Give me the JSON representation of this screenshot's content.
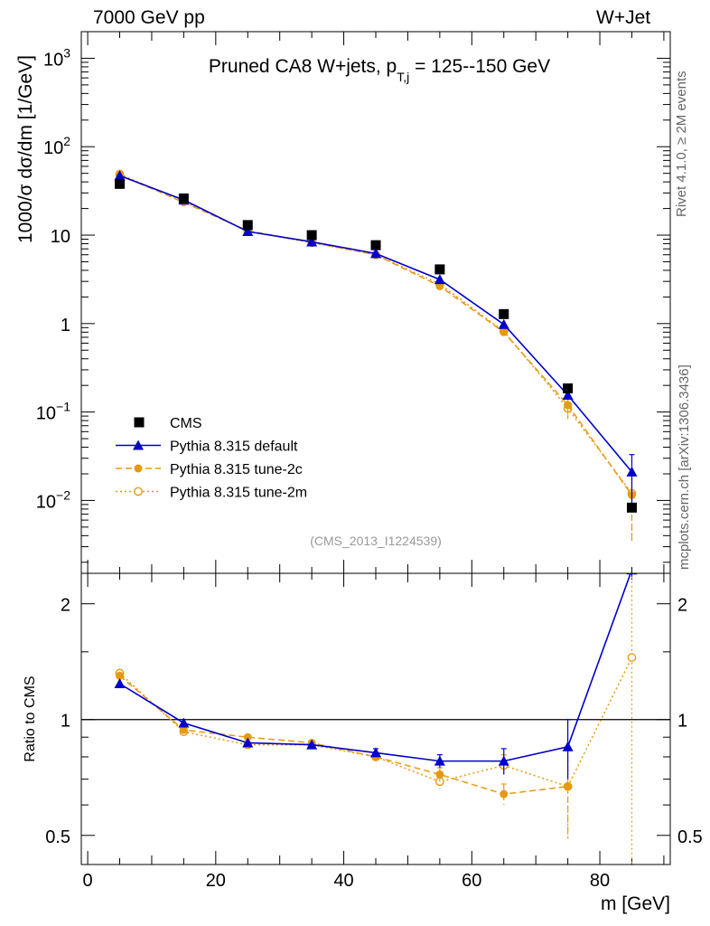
{
  "header": {
    "left": "7000 GeV pp",
    "right": "W+Jet"
  },
  "side_labels": {
    "rivet": "Rivet 4.1.0, ≥ 2M events",
    "source": "mcplots.cern.ch [arXiv:1306.3436]"
  },
  "colors": {
    "cms": "#000000",
    "default": "#0000cc",
    "tune2c": "#e69a10",
    "tune2m": "#e69a10"
  },
  "chart_data": [
    {
      "type": "scatter",
      "panel": "main",
      "title_main": "Pruned CA8 W+jets, p",
      "title_sub": "T,j",
      "title_tail": " = 125--150 GeV",
      "watermark": "(CMS_2013_I1224539)",
      "ylabel": "1000/σ  dσ/dm [1/GeV]",
      "yscale": "log",
      "ylim": [
        0.0015,
        2000
      ],
      "xlim": [
        -1,
        91
      ],
      "yticks": [
        {
          "value": 1000,
          "base": "10",
          "exp": "3"
        },
        {
          "value": 100,
          "base": "10",
          "exp": "2"
        },
        {
          "value": 10,
          "base": "10",
          "exp": ""
        },
        {
          "value": 1,
          "base": "1",
          "exp": ""
        },
        {
          "value": 0.1,
          "base": "10",
          "exp": "−1"
        },
        {
          "value": 0.01,
          "base": "10",
          "exp": "−2"
        }
      ],
      "x": [
        5,
        15,
        25,
        35,
        45,
        55,
        65,
        75,
        85
      ],
      "series": [
        {
          "name": "CMS",
          "style": "data",
          "values": [
            38,
            26,
            13,
            10,
            7.7,
            4.1,
            1.28,
            0.185,
            0.0083
          ]
        },
        {
          "name": "Pythia 8.315 default",
          "style": "default",
          "values": [
            47,
            25,
            11,
            8.4,
            6.2,
            3.15,
            0.98,
            0.155,
            0.021
          ],
          "errors": [
            0,
            0,
            0,
            0,
            0,
            0,
            0,
            0,
            0.012
          ]
        },
        {
          "name": "Pythia 8.315 tune-2c",
          "style": "tune2c",
          "values": [
            48,
            23.5,
            11.2,
            8.3,
            6.0,
            2.65,
            0.8,
            0.12,
            0.0115
          ],
          "errors": [
            0,
            0,
            0,
            0,
            0,
            0.2,
            0.06,
            0.035,
            0.008
          ]
        },
        {
          "name": "Pythia 8.315 tune-2m",
          "style": "tune2m",
          "values": [
            49,
            24,
            11.1,
            8.2,
            6.0,
            2.8,
            0.82,
            0.11,
            0.012
          ],
          "errors": [
            0,
            0,
            0,
            0,
            0,
            0.2,
            0.06,
            0.03,
            0.008
          ]
        }
      ]
    },
    {
      "type": "scatter",
      "panel": "ratio",
      "ylabel": "Ratio to CMS",
      "xlabel": "m [GeV]",
      "yscale": "log",
      "ylim": [
        0.42,
        2.4
      ],
      "xlim": [
        -1,
        91
      ],
      "xticks": [
        0,
        20,
        40,
        60,
        80
      ],
      "yticks": [
        {
          "value": 2,
          "label": "2"
        },
        {
          "value": 1,
          "label": "1"
        },
        {
          "value": 0.5,
          "label": "0.5"
        }
      ],
      "x": [
        5,
        15,
        25,
        35,
        45,
        55,
        65,
        75,
        85
      ],
      "series": [
        {
          "name": "Pythia 8.315 default",
          "style": "default",
          "values": [
            1.24,
            0.98,
            0.87,
            0.86,
            0.82,
            0.78,
            0.78,
            0.85,
            2.45
          ],
          "errors": [
            0,
            0,
            0,
            0,
            0.02,
            0.03,
            0.06,
            0.15,
            0
          ]
        },
        {
          "name": "Pythia 8.315 tune-2c",
          "style": "tune2c",
          "values": [
            1.3,
            0.94,
            0.9,
            0.87,
            0.8,
            0.72,
            0.64,
            0.67,
            null
          ],
          "errors": [
            0,
            0,
            0,
            0,
            0.02,
            0.03,
            0.04,
            0.18,
            0
          ]
        },
        {
          "name": "Pythia 8.315 tune-2m",
          "style": "tune2m",
          "values": [
            1.32,
            0.93,
            0.86,
            0.86,
            0.8,
            0.69,
            0.76,
            0.67,
            1.45
          ],
          "errors": [
            0,
            0,
            0,
            0,
            0.02,
            0.03,
            0.05,
            0.18,
            1.1
          ]
        }
      ]
    }
  ]
}
